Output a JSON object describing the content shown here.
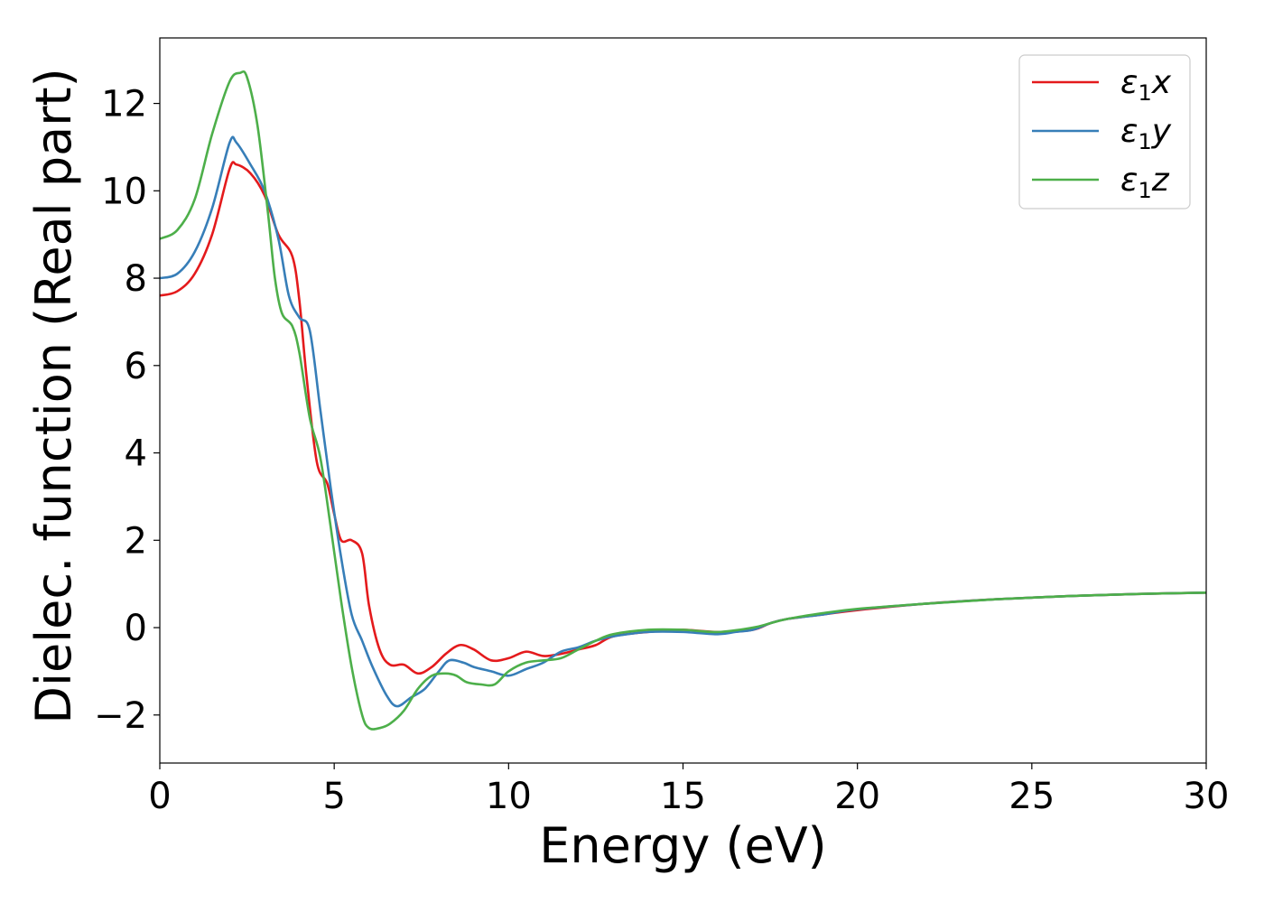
{
  "chart_data": {
    "type": "line",
    "title": "",
    "xlabel": "Energy (eV)",
    "ylabel": "Dielec. function (Real part)",
    "xlim": [
      0,
      30
    ],
    "ylim": [
      -3.1,
      13.5
    ],
    "xticks": [
      0,
      5,
      10,
      15,
      20,
      25,
      30
    ],
    "xtick_labels": [
      "0",
      "5",
      "10",
      "15",
      "20",
      "25",
      "30"
    ],
    "yticks": [
      -2,
      0,
      2,
      4,
      6,
      8,
      10,
      12
    ],
    "ytick_labels": [
      "−2",
      "0",
      "2",
      "4",
      "6",
      "8",
      "10",
      "12"
    ],
    "grid": false,
    "legend_position": "top-right",
    "series": [
      {
        "name": "ε1x",
        "legend_main": "ε",
        "legend_sub": "1",
        "legend_var": "x",
        "color": "#e41a1c",
        "points": [
          [
            0,
            7.6
          ],
          [
            0.5,
            7.7
          ],
          [
            1.0,
            8.1
          ],
          [
            1.5,
            9.0
          ],
          [
            2.0,
            10.5
          ],
          [
            2.2,
            10.6
          ],
          [
            2.6,
            10.4
          ],
          [
            3.0,
            9.9
          ],
          [
            3.4,
            9.0
          ],
          [
            3.8,
            8.5
          ],
          [
            4.0,
            7.5
          ],
          [
            4.2,
            5.8
          ],
          [
            4.5,
            3.8
          ],
          [
            4.8,
            3.3
          ],
          [
            5.0,
            2.6
          ],
          [
            5.2,
            2.0
          ],
          [
            5.5,
            2.0
          ],
          [
            5.8,
            1.7
          ],
          [
            6.0,
            0.5
          ],
          [
            6.3,
            -0.5
          ],
          [
            6.6,
            -0.85
          ],
          [
            7.0,
            -0.85
          ],
          [
            7.4,
            -1.05
          ],
          [
            7.8,
            -0.9
          ],
          [
            8.2,
            -0.6
          ],
          [
            8.6,
            -0.4
          ],
          [
            9.0,
            -0.5
          ],
          [
            9.5,
            -0.75
          ],
          [
            10.0,
            -0.7
          ],
          [
            10.5,
            -0.55
          ],
          [
            11.0,
            -0.65
          ],
          [
            11.5,
            -0.6
          ],
          [
            12.0,
            -0.5
          ],
          [
            12.5,
            -0.4
          ],
          [
            13.0,
            -0.2
          ],
          [
            14.0,
            -0.1
          ],
          [
            15.0,
            -0.05
          ],
          [
            16.0,
            -0.1
          ],
          [
            17.0,
            -0.05
          ],
          [
            17.5,
            0.1
          ],
          [
            18.0,
            0.2
          ],
          [
            19.0,
            0.3
          ],
          [
            20.0,
            0.4
          ],
          [
            22.0,
            0.55
          ],
          [
            24.0,
            0.65
          ],
          [
            26.0,
            0.72
          ],
          [
            28.0,
            0.77
          ],
          [
            30.0,
            0.8
          ]
        ]
      },
      {
        "name": "ε1y",
        "legend_main": "ε",
        "legend_sub": "1",
        "legend_var": "y",
        "color": "#377eb8",
        "points": [
          [
            0,
            8.0
          ],
          [
            0.5,
            8.1
          ],
          [
            1.0,
            8.6
          ],
          [
            1.5,
            9.6
          ],
          [
            2.0,
            11.1
          ],
          [
            2.2,
            11.1
          ],
          [
            2.6,
            10.6
          ],
          [
            3.0,
            10.0
          ],
          [
            3.4,
            8.9
          ],
          [
            3.7,
            7.6
          ],
          [
            4.0,
            7.1
          ],
          [
            4.3,
            6.8
          ],
          [
            4.6,
            5.0
          ],
          [
            4.9,
            3.2
          ],
          [
            5.2,
            1.6
          ],
          [
            5.5,
            0.3
          ],
          [
            5.8,
            -0.3
          ],
          [
            6.1,
            -0.9
          ],
          [
            6.5,
            -1.55
          ],
          [
            6.8,
            -1.8
          ],
          [
            7.2,
            -1.6
          ],
          [
            7.6,
            -1.4
          ],
          [
            8.0,
            -1.0
          ],
          [
            8.3,
            -0.75
          ],
          [
            8.7,
            -0.8
          ],
          [
            9.0,
            -0.9
          ],
          [
            9.5,
            -1.0
          ],
          [
            10.0,
            -1.1
          ],
          [
            10.5,
            -0.95
          ],
          [
            11.0,
            -0.8
          ],
          [
            11.5,
            -0.55
          ],
          [
            12.0,
            -0.45
          ],
          [
            12.5,
            -0.3
          ],
          [
            13.0,
            -0.2
          ],
          [
            14.0,
            -0.1
          ],
          [
            15.0,
            -0.1
          ],
          [
            16.0,
            -0.15
          ],
          [
            16.5,
            -0.1
          ],
          [
            17.0,
            -0.05
          ],
          [
            17.5,
            0.1
          ],
          [
            18.0,
            0.2
          ],
          [
            19.0,
            0.3
          ],
          [
            20.0,
            0.42
          ],
          [
            22.0,
            0.55
          ],
          [
            24.0,
            0.65
          ],
          [
            26.0,
            0.72
          ],
          [
            28.0,
            0.77
          ],
          [
            30.0,
            0.8
          ]
        ]
      },
      {
        "name": "ε1z",
        "legend_main": "ε",
        "legend_sub": "1",
        "legend_var": "z",
        "color": "#4daf4a",
        "points": [
          [
            0,
            8.9
          ],
          [
            0.5,
            9.1
          ],
          [
            1.0,
            9.8
          ],
          [
            1.5,
            11.3
          ],
          [
            2.0,
            12.5
          ],
          [
            2.3,
            12.7
          ],
          [
            2.5,
            12.6
          ],
          [
            2.8,
            11.5
          ],
          [
            3.1,
            9.5
          ],
          [
            3.3,
            8.0
          ],
          [
            3.5,
            7.2
          ],
          [
            3.8,
            6.9
          ],
          [
            4.0,
            6.3
          ],
          [
            4.3,
            4.8
          ],
          [
            4.6,
            3.9
          ],
          [
            4.9,
            2.3
          ],
          [
            5.2,
            0.6
          ],
          [
            5.5,
            -0.9
          ],
          [
            5.8,
            -2.0
          ],
          [
            6.0,
            -2.3
          ],
          [
            6.3,
            -2.3
          ],
          [
            6.6,
            -2.2
          ],
          [
            7.0,
            -1.9
          ],
          [
            7.4,
            -1.4
          ],
          [
            7.8,
            -1.1
          ],
          [
            8.2,
            -1.05
          ],
          [
            8.5,
            -1.1
          ],
          [
            8.8,
            -1.25
          ],
          [
            9.2,
            -1.3
          ],
          [
            9.6,
            -1.3
          ],
          [
            10.0,
            -1.0
          ],
          [
            10.5,
            -0.8
          ],
          [
            11.0,
            -0.75
          ],
          [
            11.5,
            -0.7
          ],
          [
            12.0,
            -0.5
          ],
          [
            12.5,
            -0.3
          ],
          [
            13.0,
            -0.15
          ],
          [
            14.0,
            -0.05
          ],
          [
            15.0,
            -0.05
          ],
          [
            16.0,
            -0.1
          ],
          [
            17.0,
            0.0
          ],
          [
            17.5,
            0.1
          ],
          [
            18.0,
            0.2
          ],
          [
            19.0,
            0.33
          ],
          [
            20.0,
            0.43
          ],
          [
            22.0,
            0.55
          ],
          [
            24.0,
            0.65
          ],
          [
            26.0,
            0.72
          ],
          [
            28.0,
            0.77
          ],
          [
            30.0,
            0.8
          ]
        ]
      }
    ]
  }
}
